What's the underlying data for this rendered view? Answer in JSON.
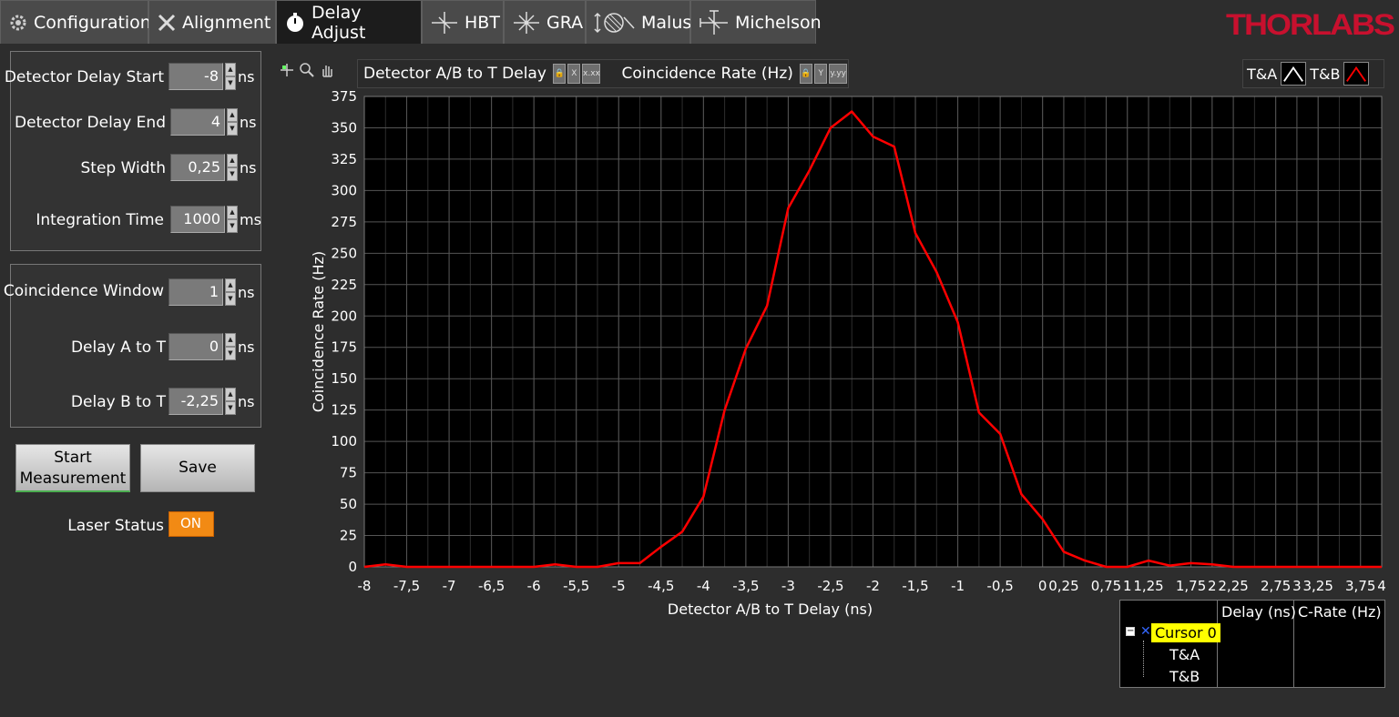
{
  "tabs": [
    {
      "label": "Configuration",
      "icon": "gear-icon",
      "active": false
    },
    {
      "label": "Alignment",
      "icon": "tools-icon",
      "active": false
    },
    {
      "label": "Delay Adjust",
      "icon": "stopwatch-icon",
      "active": true
    },
    {
      "label": "HBT",
      "icon": "hbt-setup-icon",
      "active": false
    },
    {
      "label": "GRA",
      "icon": "gra-setup-icon",
      "active": false
    },
    {
      "label": "Malus",
      "icon": "polarizer-icon",
      "active": false
    },
    {
      "label": "Michelson",
      "icon": "interferometer-icon",
      "active": false
    }
  ],
  "logo": {
    "text": "THORLABS",
    "color": "#c8102e"
  },
  "scan_settings": {
    "start": {
      "label": "Detector Delay Start",
      "value": "-8",
      "unit": "ns"
    },
    "end": {
      "label": "Detector Delay End",
      "value": "4",
      "unit": "ns"
    },
    "step": {
      "label": "Step Width",
      "value": "0,25",
      "unit": "ns"
    },
    "integration": {
      "label": "Integration Time",
      "value": "1000",
      "unit": "ms"
    }
  },
  "coincidence_settings": {
    "window": {
      "label": "Coincidence Window",
      "value": "1",
      "unit": "ns"
    },
    "delay_a": {
      "label": "Delay A to T",
      "value": "0",
      "unit": "ns"
    },
    "delay_b": {
      "label": "Delay B to T",
      "value": "-2,25",
      "unit": "ns"
    }
  },
  "buttons": {
    "start_line1": "Start",
    "start_line2": "Measurement",
    "save": "Save"
  },
  "laser": {
    "label": "Laser Status",
    "value": "ON"
  },
  "plot_toolbar": {
    "x_scale_label": "Detector A/B to T Delay",
    "y_scale_label": "Coincidence Rate (Hz)"
  },
  "legend": [
    {
      "name": "T&A",
      "color": "#ffffff"
    },
    {
      "name": "T&B",
      "color": "#ff0000"
    }
  ],
  "cursor_table": {
    "headers": [
      "Delay (ns)",
      "C-Rate (Hz)"
    ],
    "cursor": "Cursor 0",
    "items": [
      "T&A",
      "T&B"
    ]
  },
  "chart_data": {
    "type": "line",
    "xlabel": "Detector A/B to T Delay (ns)",
    "ylabel": "Coincidence Rate (Hz)",
    "xlim": [
      -8,
      4
    ],
    "ylim": [
      0,
      375
    ],
    "grid": true,
    "x_ticks": [
      "-8",
      "-7,5",
      "-7",
      "-6,5",
      "-6",
      "-5,5",
      "-5",
      "-4,5",
      "-4",
      "-3,5",
      "-3",
      "-2,5",
      "-2",
      "-1,5",
      "-1",
      "-0,5",
      "0",
      "0,25",
      "0,75",
      "1",
      "1,25",
      "1,75",
      "2",
      "2,25",
      "2,75",
      "3",
      "3,25",
      "3,75",
      "4"
    ],
    "x_tick_values": [
      -8,
      -7.5,
      -7,
      -6.5,
      -6,
      -5.5,
      -5,
      -4.5,
      -4,
      -3.5,
      -3,
      -2.5,
      -2,
      -1.5,
      -1,
      -0.5,
      0,
      0.25,
      0.75,
      1,
      1.25,
      1.75,
      2,
      2.25,
      2.75,
      3,
      3.25,
      3.75,
      4
    ],
    "y_ticks": [
      0,
      25,
      50,
      75,
      100,
      125,
      150,
      175,
      200,
      225,
      250,
      275,
      300,
      325,
      350,
      375
    ],
    "series": [
      {
        "name": "T&B",
        "color": "#ff0000",
        "x": [
          -8,
          -7.75,
          -7.5,
          -7.25,
          -7,
          -6.75,
          -6.5,
          -6.25,
          -6,
          -5.75,
          -5.5,
          -5.25,
          -5,
          -4.75,
          -4.5,
          -4.25,
          -4,
          -3.75,
          -3.5,
          -3.25,
          -3,
          -2.75,
          -2.5,
          -2.25,
          -2,
          -1.75,
          -1.5,
          -1.25,
          -1,
          -0.75,
          -0.5,
          -0.25,
          0,
          0.25,
          0.5,
          0.75,
          1,
          1.25,
          1.5,
          1.75,
          2,
          2.25,
          2.5,
          2.75,
          3,
          3.25,
          3.5,
          3.75,
          4
        ],
        "values": [
          0,
          2,
          0,
          0,
          0,
          0,
          0,
          0,
          0,
          2,
          0,
          0,
          3,
          3,
          16,
          28,
          56,
          125,
          174,
          208,
          286,
          316,
          350,
          363,
          343,
          335,
          266,
          235,
          195,
          123,
          106,
          58,
          38,
          12,
          5,
          0,
          0,
          5,
          1,
          3,
          2,
          0,
          0,
          0,
          0,
          0,
          0,
          0,
          0
        ]
      }
    ]
  }
}
